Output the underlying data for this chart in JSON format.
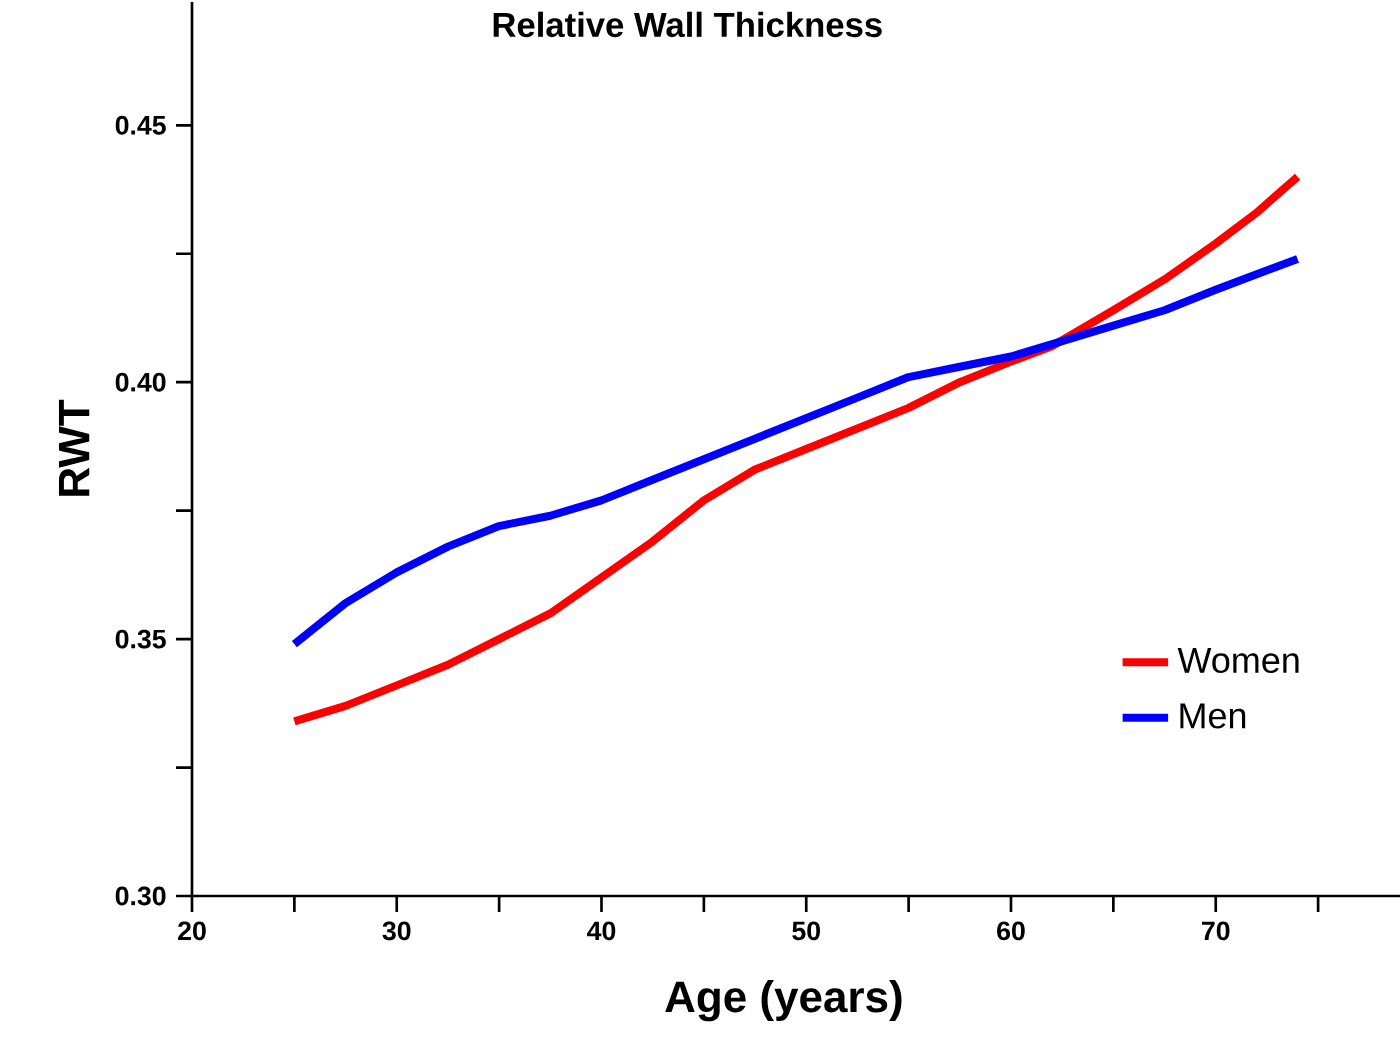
{
  "chart_data": {
    "type": "line",
    "title": "Relative Wall Thickness",
    "xlabel": "Age (years)",
    "ylabel": "RWT",
    "xlim": [
      20,
      79
    ],
    "ylim": [
      0.3,
      0.474
    ],
    "xticks": [
      20,
      {
        "value": 25,
        "label": null
      },
      30,
      {
        "value": 35,
        "label": null
      },
      40,
      {
        "value": 45,
        "label": null
      },
      50,
      {
        "value": 55,
        "label": null
      },
      60,
      {
        "value": 65,
        "label": null
      },
      70,
      {
        "value": 75,
        "label": null
      }
    ],
    "yticks": [
      {
        "value": 0.3,
        "label": "0.30"
      },
      {
        "value": 0.325,
        "label": null
      },
      {
        "value": 0.35,
        "label": "0.35"
      },
      {
        "value": 0.375,
        "label": null
      },
      {
        "value": 0.4,
        "label": "0.40"
      },
      {
        "value": 0.425,
        "label": null
      },
      {
        "value": 0.45,
        "label": "0.45"
      }
    ],
    "grid": false,
    "legend": "bottom right",
    "series": [
      {
        "name": "Women",
        "color": "#ff0000",
        "x": [
          25,
          27.5,
          30,
          32.5,
          35,
          37.5,
          40,
          42.5,
          45,
          47.5,
          50,
          52.5,
          55,
          57.5,
          60,
          62,
          65,
          67.5,
          70,
          72,
          74
        ],
        "values": [
          0.334,
          0.337,
          0.341,
          0.345,
          0.35,
          0.355,
          0.362,
          0.369,
          0.377,
          0.383,
          0.387,
          0.391,
          0.395,
          0.4,
          0.404,
          0.407,
          0.414,
          0.42,
          0.427,
          0.433,
          0.44
        ]
      },
      {
        "name": "Men",
        "color": "#0000ff",
        "x": [
          25,
          27.5,
          30,
          32.5,
          35,
          37.5,
          40,
          42.5,
          45,
          47.5,
          50,
          52.5,
          55,
          57.5,
          60,
          62.5,
          65,
          67.5,
          70,
          72,
          74
        ],
        "values": [
          0.349,
          0.357,
          0.363,
          0.368,
          0.372,
          0.374,
          0.377,
          0.381,
          0.385,
          0.389,
          0.393,
          0.397,
          0.401,
          0.403,
          0.405,
          0.408,
          0.411,
          0.414,
          0.418,
          0.421,
          0.424
        ]
      }
    ]
  }
}
